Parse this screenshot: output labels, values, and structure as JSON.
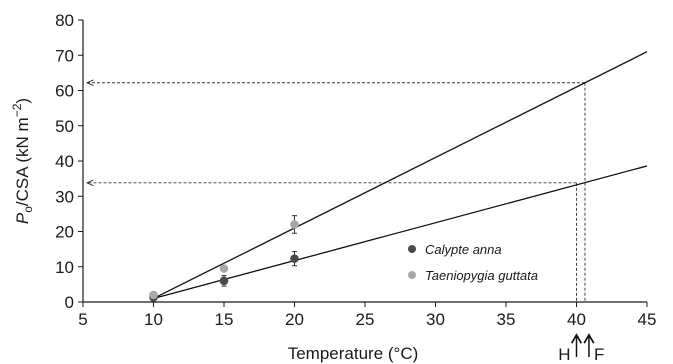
{
  "chart_data": {
    "type": "scatter",
    "xlabel": "Temperature (°C)",
    "ylabel": {
      "main": "P",
      "sub": "o",
      "rest": "/CSA (kN m",
      "sup": "−2",
      "close": ")"
    },
    "xlim": [
      5,
      45
    ],
    "ylim": [
      0,
      80
    ],
    "xticks": [
      5,
      10,
      15,
      20,
      25,
      30,
      35,
      40,
      45
    ],
    "yticks": [
      0,
      10,
      20,
      30,
      40,
      50,
      60,
      70,
      80
    ],
    "grid": false,
    "legend_position": "lower-right",
    "series": [
      {
        "name": "Calypte anna",
        "color": "#4a4a4a",
        "points": [
          {
            "x": 10,
            "y": 1.3,
            "err": 0.5
          },
          {
            "x": 15,
            "y": 6.0,
            "err": 1.5
          },
          {
            "x": 20,
            "y": 12.3,
            "err": 2.0
          }
        ],
        "fit_line": {
          "x": [
            10,
            45
          ],
          "y": [
            1.0,
            38.6
          ]
        },
        "projection": {
          "x": 40.0,
          "y": 33.8
        }
      },
      {
        "name": "Taeniopygia guttata",
        "color": "#a8a8a8",
        "points": [
          {
            "x": 10,
            "y": 2.0,
            "err": 0.4
          },
          {
            "x": 15,
            "y": 9.5,
            "err": 0.6
          },
          {
            "x": 20,
            "y": 22.0,
            "err": 2.5
          }
        ],
        "fit_line": {
          "x": [
            10,
            45
          ],
          "y": [
            1.0,
            71.0
          ]
        },
        "projection": {
          "x": 40.6,
          "y": 62.2
        }
      }
    ],
    "markers": [
      {
        "label": "H",
        "x": 40.0
      },
      {
        "label": "F",
        "x": 40.6
      }
    ]
  }
}
